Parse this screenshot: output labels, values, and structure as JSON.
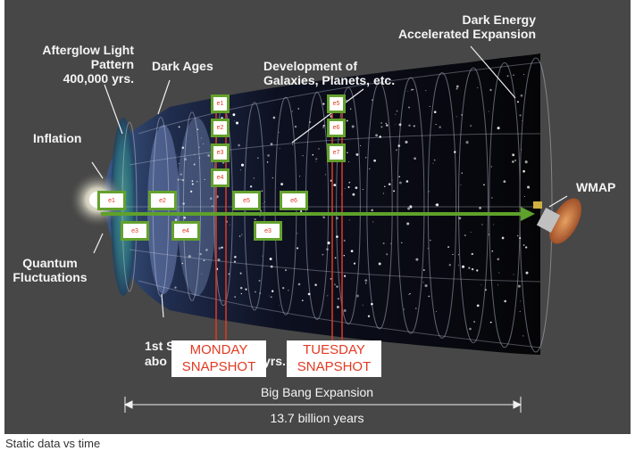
{
  "figure": {
    "labels": {
      "afterglow": "Afterglow Light\nPattern\n400,000 yrs.",
      "dark_ages": "Dark Ages",
      "development": "Development of\nGalaxies, Planets, etc.",
      "dark_energy": "Dark Energy\nAccelerated Expansion",
      "inflation": "Inflation",
      "wmap": "WMAP",
      "quantum": "Quantum\nFluctuations",
      "first_stars_line1": "1st S",
      "first_stars_line2": "abo",
      "first_stars_tail": "yrs.",
      "big_bang_expansion": "Big Bang Expansion",
      "billion_years": "13.7 billion years"
    },
    "snapshots": {
      "monday": "MONDAY\nSNAPSHOT",
      "tuesday": "TUESDAY\nSNAPSHOT"
    },
    "events": [
      "e1",
      "e2",
      "e3",
      "e4",
      "e5",
      "e6",
      "e7",
      "e1",
      "e2",
      "e3",
      "e4",
      "e5",
      "e6",
      "e3"
    ]
  },
  "caption": "Static data vs time",
  "colors": {
    "background": "#474747",
    "arrow": "#5fa12a",
    "snapshot_line": "#e23a22",
    "event_border": "#64a12d"
  }
}
